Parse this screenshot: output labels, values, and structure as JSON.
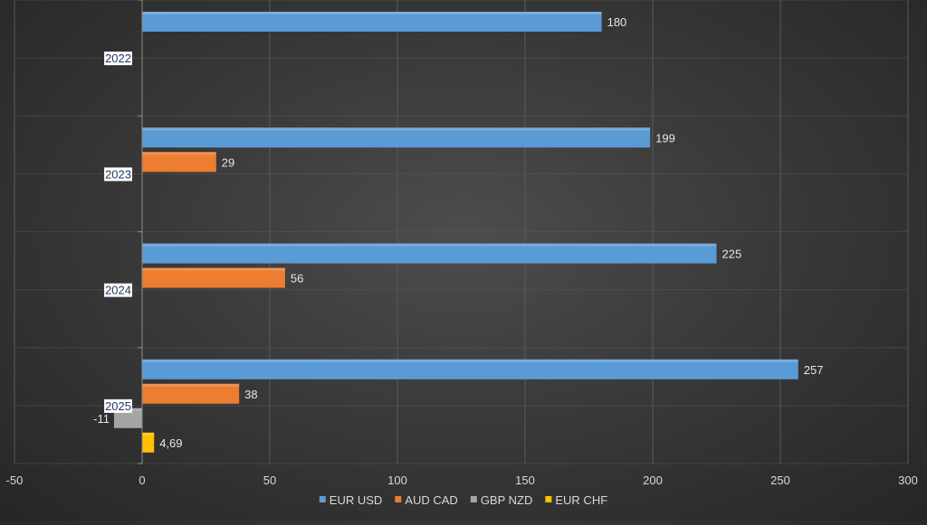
{
  "chart_data": {
    "type": "bar",
    "orientation": "horizontal",
    "categories": [
      "2022",
      "2023",
      "2024",
      "2025"
    ],
    "series": [
      {
        "name": "EUR USD",
        "color": "#5b9bd5",
        "values": [
          180,
          199,
          225,
          257
        ],
        "labels": [
          "180",
          "199",
          "225",
          "257"
        ]
      },
      {
        "name": "AUD CAD",
        "color": "#ed7d31",
        "values": [
          null,
          29,
          56,
          38
        ],
        "labels": [
          "",
          "29",
          "56",
          "38"
        ]
      },
      {
        "name": "GBP NZD",
        "color": "#a5a5a5",
        "values": [
          null,
          null,
          null,
          -11
        ],
        "labels": [
          "",
          "",
          "",
          "-11"
        ]
      },
      {
        "name": "EUR CHF",
        "color": "#ffc000",
        "values": [
          null,
          null,
          null,
          4.69
        ],
        "labels": [
          "",
          "",
          "",
          "4,69"
        ]
      }
    ],
    "xlim": [
      -50,
      300
    ],
    "xticks": [
      -50,
      0,
      50,
      100,
      150,
      200,
      250,
      300
    ],
    "xtick_labels": [
      "-50",
      "0",
      "50",
      "100",
      "150",
      "200",
      "250",
      "300"
    ],
    "grid": true,
    "legend_position": "bottom"
  }
}
